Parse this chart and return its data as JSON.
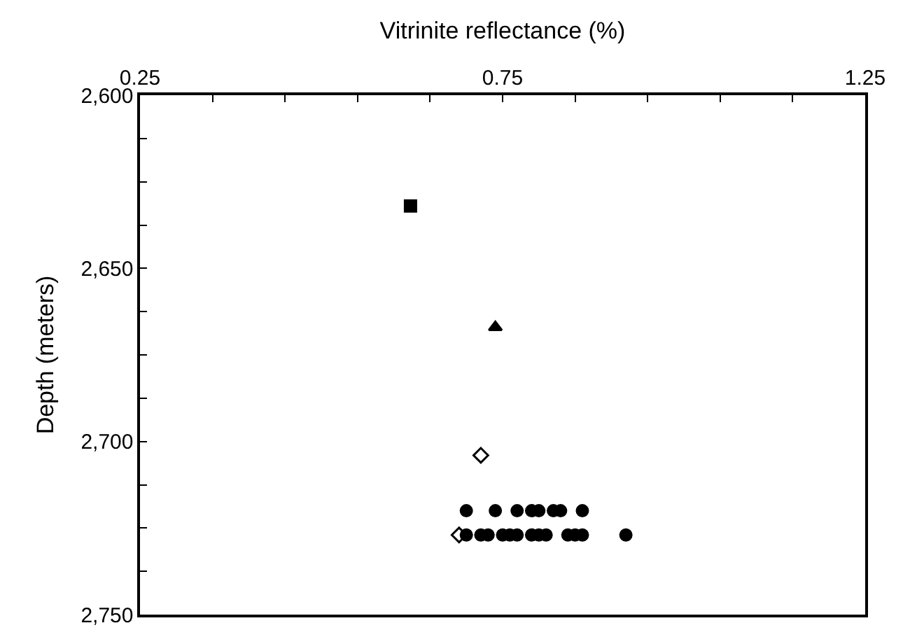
{
  "chart_data": {
    "type": "scatter",
    "xlabel": "Vitrinite reflectance (%)",
    "ylabel": "Depth (meters)",
    "xlim": [
      0.25,
      1.25
    ],
    "xticks": [
      0.25,
      {
        "value": 0.35,
        "label": null
      },
      {
        "value": 0.45,
        "label": null
      },
      {
        "value": 0.55,
        "label": null
      },
      {
        "value": 0.65,
        "label": null
      },
      0.75,
      {
        "value": 0.85,
        "label": null
      },
      {
        "value": 0.95,
        "label": null
      },
      {
        "value": 1.05,
        "label": null
      },
      {
        "value": 1.15,
        "label": null
      },
      1.25
    ],
    "ylim": [
      2750,
      2600
    ],
    "yticks": [
      {
        "value": 2600,
        "label": "2,600"
      },
      {
        "value": 2612.5,
        "label": null
      },
      {
        "value": 2625,
        "label": null
      },
      {
        "value": 2637.5,
        "label": null
      },
      {
        "value": 2650,
        "label": "2,650"
      },
      {
        "value": 2662.5,
        "label": null
      },
      {
        "value": 2675,
        "label": null
      },
      {
        "value": 2687.5,
        "label": null
      },
      {
        "value": 2700,
        "label": "2,700"
      },
      {
        "value": 2712.5,
        "label": null
      },
      {
        "value": 2725,
        "label": null
      },
      {
        "value": 2737.5,
        "label": null
      },
      {
        "value": 2750,
        "label": "2,750"
      }
    ],
    "series": [
      {
        "marker": "square",
        "color": "#000000",
        "x": [
          0.623
        ],
        "values": [
          2632
        ]
      },
      {
        "marker": "triangle",
        "color": "#000000",
        "x": [
          0.74
        ],
        "values": [
          2667
        ]
      },
      {
        "marker": "diamond",
        "color": "#ffffff",
        "x": [
          0.72,
          0.69
        ],
        "values": [
          2704,
          2727
        ]
      },
      {
        "marker": "circle",
        "color": "#000000",
        "x": [
          0.7,
          0.74,
          0.77,
          0.79,
          0.8,
          0.82,
          0.83,
          0.86,
          0.7,
          0.72,
          0.73,
          0.75,
          0.76,
          0.77,
          0.79,
          0.8,
          0.81,
          0.84,
          0.85,
          0.86,
          0.92
        ],
        "values": [
          2720,
          2720,
          2720,
          2720,
          2720,
          2720,
          2720,
          2720,
          2727,
          2727,
          2727,
          2727,
          2727,
          2727,
          2727,
          2727,
          2727,
          2727,
          2727,
          2727,
          2727
        ]
      }
    ]
  }
}
